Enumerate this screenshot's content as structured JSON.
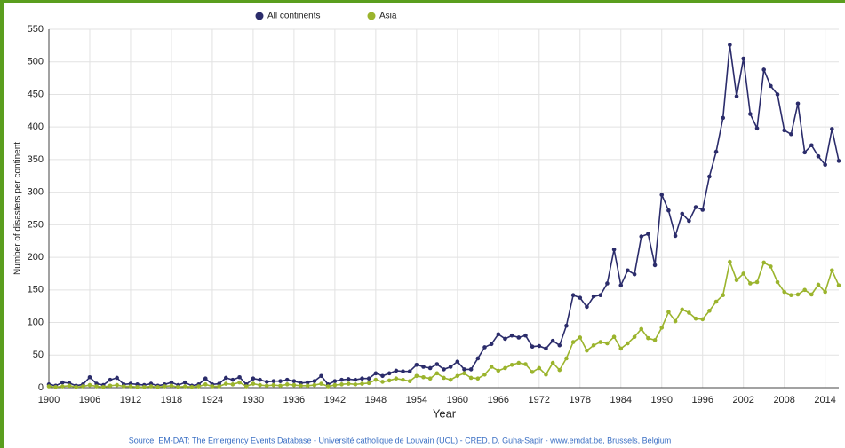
{
  "chart_data": {
    "type": "line",
    "xlabel": "Year",
    "ylabel": "Number of disasters per continent",
    "source": "Source: EM-DAT: The Emergency Events Database - Université catholique de Louvain (UCL) - CRED, D. Guha-Sapir - www.emdat.be, Brussels, Belgium",
    "x": [
      1900,
      1901,
      1902,
      1903,
      1904,
      1905,
      1906,
      1907,
      1908,
      1909,
      1910,
      1911,
      1912,
      1913,
      1914,
      1915,
      1916,
      1917,
      1918,
      1919,
      1920,
      1921,
      1922,
      1923,
      1924,
      1925,
      1926,
      1927,
      1928,
      1929,
      1930,
      1931,
      1932,
      1933,
      1934,
      1935,
      1936,
      1937,
      1938,
      1939,
      1940,
      1941,
      1942,
      1943,
      1944,
      1945,
      1946,
      1947,
      1948,
      1949,
      1950,
      1951,
      1952,
      1953,
      1954,
      1955,
      1956,
      1957,
      1958,
      1959,
      1960,
      1961,
      1962,
      1963,
      1964,
      1965,
      1966,
      1967,
      1968,
      1969,
      1970,
      1971,
      1972,
      1973,
      1974,
      1975,
      1976,
      1977,
      1978,
      1979,
      1980,
      1981,
      1982,
      1983,
      1984,
      1985,
      1986,
      1987,
      1988,
      1989,
      1990,
      1991,
      1992,
      1993,
      1994,
      1995,
      1996,
      1997,
      1998,
      1999,
      2000,
      2001,
      2002,
      2003,
      2004,
      2005,
      2006,
      2007,
      2008,
      2009,
      2010,
      2011,
      2012,
      2013,
      2014,
      2015,
      2016
    ],
    "series": [
      {
        "name": "All continents",
        "color": "#2b2c6b",
        "values": [
          5,
          3,
          8,
          7,
          3,
          5,
          16,
          6,
          4,
          12,
          15,
          5,
          6,
          5,
          4,
          6,
          3,
          5,
          8,
          4,
          8,
          3,
          5,
          14,
          5,
          6,
          15,
          12,
          16,
          5,
          14,
          12,
          9,
          10,
          10,
          12,
          10,
          7,
          8,
          10,
          18,
          5,
          10,
          12,
          13,
          12,
          14,
          14,
          22,
          18,
          22,
          26,
          25,
          25,
          35,
          32,
          30,
          36,
          28,
          32,
          40,
          28,
          28,
          45,
          62,
          67,
          82,
          75,
          80,
          77,
          80,
          63,
          64,
          60,
          72,
          65,
          95,
          142,
          138,
          124,
          140,
          142,
          160,
          212,
          157,
          180,
          174,
          232,
          236,
          188,
          296,
          272,
          233,
          267,
          256,
          277,
          273,
          324,
          362,
          414,
          526,
          447,
          505,
          420,
          398,
          488,
          463,
          450,
          395,
          389,
          436,
          361,
          372,
          355,
          342,
          397,
          348
        ]
      },
      {
        "name": "Asia",
        "color": "#9bb42d",
        "values": [
          2,
          1,
          2,
          3,
          1,
          2,
          4,
          2,
          1,
          3,
          4,
          2,
          2,
          1,
          1,
          2,
          1,
          2,
          3,
          1,
          2,
          1,
          2,
          5,
          2,
          2,
          6,
          5,
          8,
          2,
          6,
          4,
          3,
          4,
          3,
          5,
          4,
          3,
          3,
          4,
          6,
          2,
          4,
          5,
          6,
          5,
          6,
          7,
          12,
          9,
          11,
          14,
          12,
          10,
          18,
          16,
          14,
          22,
          15,
          12,
          18,
          22,
          15,
          14,
          20,
          32,
          26,
          30,
          35,
          38,
          36,
          24,
          30,
          20,
          38,
          27,
          45,
          70,
          77,
          57,
          65,
          70,
          68,
          78,
          60,
          68,
          78,
          90,
          76,
          73,
          92,
          116,
          102,
          120,
          115,
          106,
          105,
          118,
          132,
          142,
          193,
          165,
          175,
          160,
          162,
          192,
          186,
          162,
          147,
          142,
          143,
          150,
          143,
          158,
          147,
          180,
          157
        ]
      }
    ],
    "xlim": [
      1900,
      2016
    ],
    "xticks": [
      1900,
      1906,
      1912,
      1918,
      1924,
      1930,
      1936,
      1942,
      1948,
      1954,
      1960,
      1966,
      1972,
      1978,
      1984,
      1990,
      1996,
      2002,
      2008,
      2014
    ],
    "ylim": [
      0,
      550
    ],
    "yticks": [
      0,
      50,
      100,
      150,
      200,
      250,
      300,
      350,
      400,
      450,
      500,
      550
    ],
    "grid": true
  }
}
